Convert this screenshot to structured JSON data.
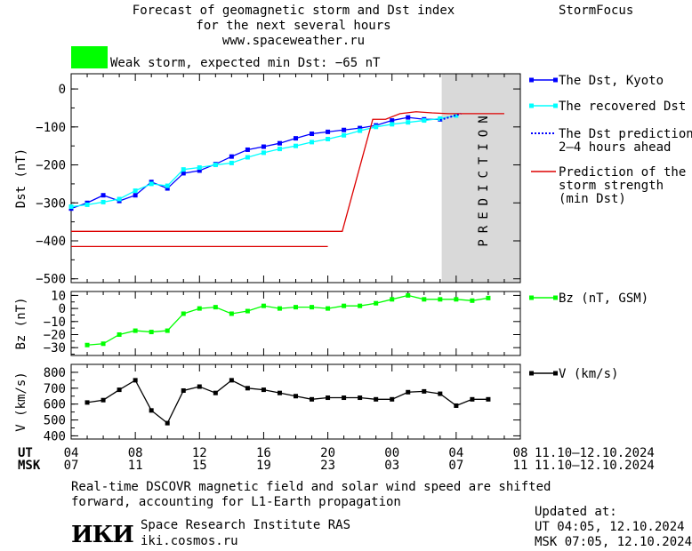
{
  "header": {
    "title_line1": "Forecast of geomagnetic storm and Dst index",
    "title_line2": "for the next several hours",
    "url": "www.spaceweather.ru",
    "brand": "StormFocus"
  },
  "status": {
    "text": "Weak storm, expected min Dst: −65 nT",
    "color": "#00ff00"
  },
  "chart_data": [
    {
      "type": "line",
      "panel": "dst",
      "ylabel": "Dst (nT)",
      "ylim": [
        -510,
        40
      ],
      "yticks": [
        0,
        -100,
        -200,
        -300,
        -400,
        -500
      ],
      "ytick_labels": [
        "0",
        "−100",
        "−200",
        "−300",
        "−400",
        "−500"
      ],
      "xlim": [
        4,
        32
      ],
      "prediction_region": [
        27.1,
        32
      ],
      "prediction_label": "PREDICTION",
      "series": [
        {
          "name": "The Dst, Kyoto",
          "color": "#0000ff",
          "marker": "square",
          "x": [
            4,
            5,
            6,
            7,
            8,
            9,
            10,
            11,
            12,
            13,
            14,
            15,
            16,
            17,
            18,
            19,
            20,
            21,
            22,
            23,
            24,
            25,
            26,
            27
          ],
          "y": [
            -315,
            -300,
            -280,
            -295,
            -280,
            -245,
            -262,
            -222,
            -215,
            -198,
            -178,
            -160,
            -152,
            -143,
            -130,
            -118,
            -113,
            -108,
            -103,
            -96,
            -83,
            -75,
            -80,
            -80
          ]
        },
        {
          "name": "The recovered Dst",
          "color": "#00ffff",
          "marker": "square",
          "x": [
            4,
            5,
            6,
            7,
            8,
            9,
            10,
            11,
            12,
            13,
            14,
            15,
            16,
            17,
            18,
            19,
            20,
            21,
            22,
            23,
            24,
            25,
            26,
            27,
            28
          ],
          "y": [
            -310,
            -305,
            -298,
            -290,
            -268,
            -250,
            -255,
            -212,
            -207,
            -200,
            -195,
            -180,
            -168,
            -158,
            -150,
            -140,
            -132,
            -122,
            -110,
            -100,
            -93,
            -88,
            -83,
            -78,
            -70
          ]
        },
        {
          "name": "The Dst prediction",
          "name_line2": "2–4 hours ahead",
          "color": "#0000ff",
          "dashed": true,
          "x": [
            27,
            28.3
          ],
          "y": [
            -82,
            -65
          ]
        },
        {
          "name": "Prediction of the",
          "name_line2": "storm strength",
          "name_line3": "(min Dst)",
          "color": "#dd0000",
          "x": [
            4,
            20.9,
            22.8,
            23.6,
            24.5,
            25.5,
            26.5,
            27.5,
            29.5,
            31
          ],
          "y": [
            -375,
            -375,
            -80,
            -80,
            -65,
            -60,
            -63,
            -65,
            -65,
            -65
          ],
          "extra_segment": {
            "x": [
              4,
              20
            ],
            "y": [
              -415,
              -415
            ]
          }
        }
      ]
    },
    {
      "type": "line",
      "panel": "bz",
      "ylabel": "Bz (nT)",
      "ylim": [
        -36,
        13
      ],
      "yticks": [
        10,
        0,
        -10,
        -20,
        -30
      ],
      "ytick_labels": [
        "10",
        "0",
        "−10",
        "−20",
        "−30"
      ],
      "xlim": [
        4,
        32
      ],
      "series": [
        {
          "name": "Bz (nT, GSM)",
          "color": "#00ff00",
          "marker": "square",
          "x": [
            5,
            6,
            7,
            8,
            9,
            10,
            11,
            12,
            13,
            14,
            15,
            16,
            17,
            18,
            19,
            20,
            21,
            22,
            23,
            24,
            25,
            26,
            27,
            28,
            29,
            30
          ],
          "y": [
            -28,
            -27,
            -20,
            -17,
            -18,
            -17,
            -4,
            0,
            1,
            -4,
            -2,
            2,
            0,
            1,
            1,
            0,
            2,
            2,
            4,
            7,
            10,
            7,
            7,
            7,
            6,
            8
          ]
        }
      ]
    },
    {
      "type": "line",
      "panel": "v",
      "ylabel": "V (km/s)",
      "ylim": [
        380,
        850
      ],
      "yticks": [
        800,
        700,
        600,
        500,
        400
      ],
      "ytick_labels": [
        "800",
        "700",
        "600",
        "500",
        "400"
      ],
      "xlim": [
        4,
        32
      ],
      "series": [
        {
          "name": "V (km/s)",
          "color": "#000000",
          "marker": "square",
          "x": [
            5,
            6,
            7,
            8,
            9,
            10,
            11,
            12,
            13,
            14,
            15,
            16,
            17,
            18,
            19,
            20,
            21,
            22,
            23,
            24,
            25,
            26,
            27,
            28,
            29,
            30
          ],
          "y": [
            610,
            625,
            690,
            750,
            560,
            480,
            685,
            710,
            670,
            750,
            700,
            690,
            670,
            650,
            630,
            640,
            640,
            640,
            630,
            630,
            675,
            680,
            665,
            590,
            630,
            630
          ]
        }
      ]
    }
  ],
  "x_axis": {
    "ut_label": "UT",
    "msk_label": "MSK",
    "ut_ticks": [
      "04",
      "08",
      "12",
      "16",
      "20",
      "00",
      "04",
      "08"
    ],
    "msk_ticks": [
      "07",
      "11",
      "15",
      "19",
      "23",
      "03",
      "07",
      "11"
    ],
    "ut_range": "11.10–12.10.2024",
    "msk_range": "11.10–12.10.2024"
  },
  "footer": {
    "note_line1": "Real-time DSCOVR magnetic field and solar wind speed are shifted",
    "note_line2": "forward, accounting for L1-Earth propagation",
    "logo": "ИКИ",
    "institute": "Space Research Institute RAS",
    "site": "iki.cosmos.ru",
    "updated_label": "Updated at:",
    "updated_ut": "UT   04:05, 12.10.2024",
    "updated_msk": "MSK 07:05, 12.10.2024"
  }
}
